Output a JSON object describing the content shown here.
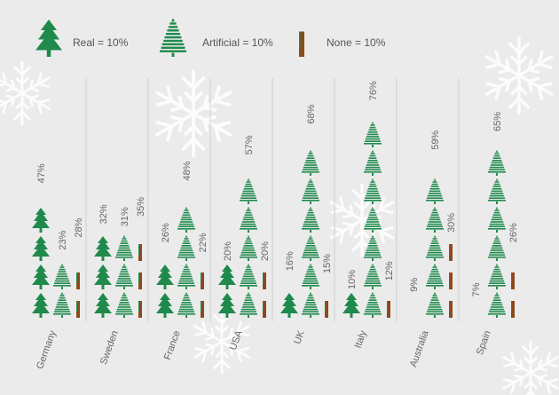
{
  "chart_data": {
    "type": "pictogram",
    "unit": 10,
    "categories": [
      "Germany",
      "Sweden",
      "France",
      "USA",
      "UK",
      "Italy",
      "Australia",
      "Spain"
    ],
    "series": [
      {
        "name": "Real = 10%",
        "color": "#1f8a4c",
        "icon": "real",
        "values": [
          47,
          32,
          26,
          20,
          16,
          10,
          9,
          7
        ],
        "value_labels": [
          "47%",
          "32%",
          "26%",
          "20%",
          "16%",
          "10%",
          "9%",
          "7%"
        ]
      },
      {
        "name": "Artificial = 10%",
        "color": "#1f8a4c",
        "icon": "artificial",
        "values": [
          23,
          31,
          48,
          57,
          68,
          76,
          59,
          65
        ],
        "value_labels": [
          "23%",
          "31%",
          "48%",
          "57%",
          "68%",
          "76%",
          "59%",
          "65%"
        ]
      },
      {
        "name": "None = 10%",
        "color": "#8b4a1e",
        "icon": "none",
        "values": [
          28,
          35,
          22,
          20,
          15,
          12,
          30,
          26
        ],
        "value_labels": [
          "28%",
          "35%",
          "22%",
          "20%",
          "15%",
          "12%",
          "30%",
          "26%"
        ]
      }
    ]
  }
}
